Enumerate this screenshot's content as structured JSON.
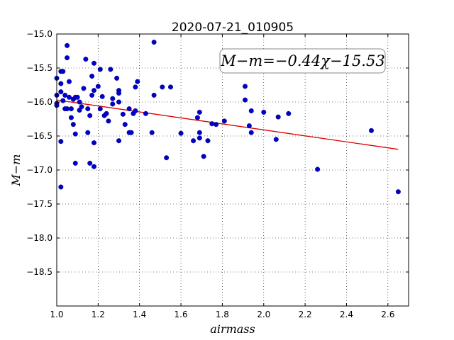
{
  "chart_data": {
    "type": "scatter",
    "title": "2020-07-21_010905",
    "xlabel": "airmass",
    "ylabel": "M−m",
    "xlim": [
      1.0,
      2.7
    ],
    "ylim": [
      -19.0,
      -15.0
    ],
    "y_inverted": true,
    "grid": true,
    "x_ticks": [
      "1.0",
      "1.2",
      "1.4",
      "1.6",
      "1.8",
      "2.0",
      "2.2",
      "2.4",
      "2.6"
    ],
    "x_tick_values": [
      1.0,
      1.2,
      1.4,
      1.6,
      1.8,
      2.0,
      2.2,
      2.4,
      2.6
    ],
    "y_ticks": [
      "−15.0",
      "−15.5",
      "−16.0",
      "−16.5",
      "−17.0",
      "−17.5",
      "−18.0",
      "−18.5"
    ],
    "y_tick_values": [
      -15.0,
      -15.5,
      -16.0,
      -16.5,
      -17.0,
      -17.5,
      -18.0,
      -18.5
    ],
    "annotation": "M−m=−0.44χ−15.53",
    "fit": {
      "slope": -0.44,
      "intercept": -15.53,
      "x_range": [
        1.0,
        2.65
      ],
      "color": "#dd0000"
    },
    "point_color": "#0000cc",
    "points": [
      {
        "x": 1.0,
        "y": -15.65
      },
      {
        "x": 1.0,
        "y": -15.9
      },
      {
        "x": 1.0,
        "y": -16.02
      },
      {
        "x": 1.0,
        "y": -16.05
      },
      {
        "x": 1.02,
        "y": -15.55
      },
      {
        "x": 1.03,
        "y": -15.55
      },
      {
        "x": 1.02,
        "y": -15.73
      },
      {
        "x": 1.02,
        "y": -15.85
      },
      {
        "x": 1.03,
        "y": -15.98
      },
      {
        "x": 1.04,
        "y": -15.9
      },
      {
        "x": 1.04,
        "y": -16.1
      },
      {
        "x": 1.05,
        "y": -16.1
      },
      {
        "x": 1.02,
        "y": -16.58
      },
      {
        "x": 1.02,
        "y": -17.25
      },
      {
        "x": 1.05,
        "y": -15.35
      },
      {
        "x": 1.05,
        "y": -15.17
      },
      {
        "x": 1.06,
        "y": -15.7
      },
      {
        "x": 1.06,
        "y": -15.93
      },
      {
        "x": 1.07,
        "y": -16.1
      },
      {
        "x": 1.07,
        "y": -16.23
      },
      {
        "x": 1.08,
        "y": -16.33
      },
      {
        "x": 1.08,
        "y": -15.96
      },
      {
        "x": 1.09,
        "y": -15.93
      },
      {
        "x": 1.09,
        "y": -16.47
      },
      {
        "x": 1.09,
        "y": -16.9
      },
      {
        "x": 1.1,
        "y": -15.93
      },
      {
        "x": 1.11,
        "y": -16.0
      },
      {
        "x": 1.11,
        "y": -16.12
      },
      {
        "x": 1.12,
        "y": -16.07
      },
      {
        "x": 1.13,
        "y": -15.8
      },
      {
        "x": 1.14,
        "y": -15.37
      },
      {
        "x": 1.15,
        "y": -16.1
      },
      {
        "x": 1.16,
        "y": -16.2
      },
      {
        "x": 1.15,
        "y": -16.45
      },
      {
        "x": 1.16,
        "y": -16.9
      },
      {
        "x": 1.17,
        "y": -15.9
      },
      {
        "x": 1.17,
        "y": -15.62
      },
      {
        "x": 1.18,
        "y": -15.43
      },
      {
        "x": 1.18,
        "y": -15.83
      },
      {
        "x": 1.18,
        "y": -16.6
      },
      {
        "x": 1.18,
        "y": -16.95
      },
      {
        "x": 1.2,
        "y": -15.77
      },
      {
        "x": 1.21,
        "y": -15.52
      },
      {
        "x": 1.22,
        "y": -15.92
      },
      {
        "x": 1.21,
        "y": -16.1
      },
      {
        "x": 1.23,
        "y": -16.2
      },
      {
        "x": 1.24,
        "y": -16.17
      },
      {
        "x": 1.25,
        "y": -16.28
      },
      {
        "x": 1.26,
        "y": -15.52
      },
      {
        "x": 1.27,
        "y": -15.95
      },
      {
        "x": 1.27,
        "y": -16.03
      },
      {
        "x": 1.29,
        "y": -15.65
      },
      {
        "x": 1.3,
        "y": -15.83
      },
      {
        "x": 1.3,
        "y": -15.87
      },
      {
        "x": 1.3,
        "y": -16.0
      },
      {
        "x": 1.3,
        "y": -16.57
      },
      {
        "x": 1.32,
        "y": -16.18
      },
      {
        "x": 1.33,
        "y": -16.33
      },
      {
        "x": 1.35,
        "y": -16.1
      },
      {
        "x": 1.35,
        "y": -16.45
      },
      {
        "x": 1.36,
        "y": -16.45
      },
      {
        "x": 1.37,
        "y": -16.17
      },
      {
        "x": 1.38,
        "y": -16.13
      },
      {
        "x": 1.38,
        "y": -15.78
      },
      {
        "x": 1.39,
        "y": -15.7
      },
      {
        "x": 1.43,
        "y": -16.17
      },
      {
        "x": 1.46,
        "y": -16.45
      },
      {
        "x": 1.47,
        "y": -15.9
      },
      {
        "x": 1.47,
        "y": -15.12
      },
      {
        "x": 1.51,
        "y": -15.78
      },
      {
        "x": 1.53,
        "y": -16.82
      },
      {
        "x": 1.55,
        "y": -15.78
      },
      {
        "x": 1.6,
        "y": -16.46
      },
      {
        "x": 1.66,
        "y": -16.57
      },
      {
        "x": 1.68,
        "y": -16.23
      },
      {
        "x": 1.69,
        "y": -16.15
      },
      {
        "x": 1.69,
        "y": -16.45
      },
      {
        "x": 1.69,
        "y": -16.53
      },
      {
        "x": 1.71,
        "y": -16.8
      },
      {
        "x": 1.73,
        "y": -16.57
      },
      {
        "x": 1.75,
        "y": -16.32
      },
      {
        "x": 1.77,
        "y": -16.33
      },
      {
        "x": 1.81,
        "y": -16.28
      },
      {
        "x": 1.91,
        "y": -15.77
      },
      {
        "x": 1.91,
        "y": -15.97
      },
      {
        "x": 1.94,
        "y": -16.13
      },
      {
        "x": 1.93,
        "y": -16.35
      },
      {
        "x": 1.94,
        "y": -16.45
      },
      {
        "x": 2.0,
        "y": -16.15
      },
      {
        "x": 2.06,
        "y": -16.55
      },
      {
        "x": 2.07,
        "y": -16.22
      },
      {
        "x": 2.12,
        "y": -16.17
      },
      {
        "x": 2.26,
        "y": -16.99
      },
      {
        "x": 2.52,
        "y": -16.42
      },
      {
        "x": 2.65,
        "y": -17.32
      }
    ]
  }
}
